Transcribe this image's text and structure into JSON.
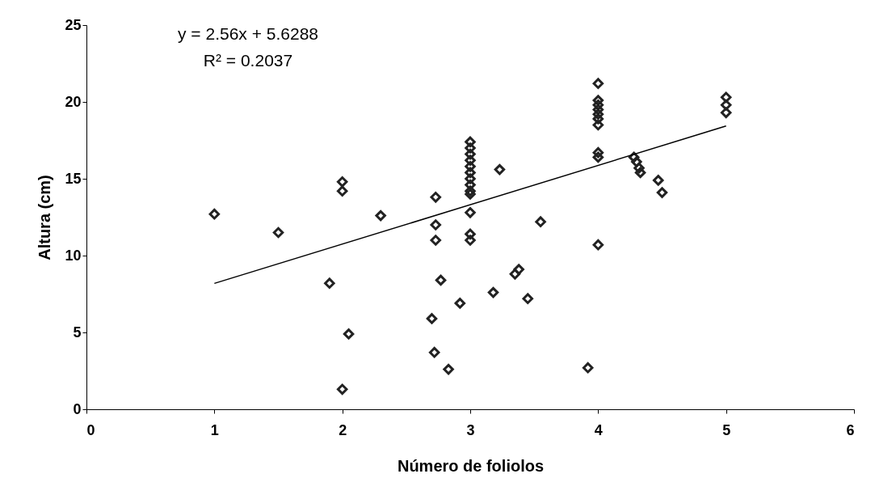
{
  "chart_data": {
    "type": "scatter",
    "xlabel": "Número de foliolos",
    "ylabel": "Altura (cm)",
    "annotations": [
      "y = 2.56x + 5.6288",
      "R² = 0.2037"
    ],
    "xlim": [
      0,
      6
    ],
    "xticks": [
      0,
      1,
      2,
      3,
      4,
      5,
      6
    ],
    "ylim": [
      0,
      25
    ],
    "yticks": [
      0,
      5,
      10,
      15,
      20,
      25
    ],
    "grid": false,
    "marker": "diamond",
    "series": [
      {
        "color": "#222222",
        "x": [
          1,
          1.5,
          1.9,
          2,
          2,
          2.05,
          2,
          2.3,
          2.7,
          2.72,
          2.73,
          2.73,
          2.73,
          2.77,
          2.83,
          2.92,
          3,
          3,
          3,
          3,
          3,
          3,
          3,
          3,
          3,
          3,
          3,
          3,
          3,
          3.18,
          3.23,
          3.35,
          3.38,
          3.45,
          3.55,
          3.92,
          4,
          4,
          4,
          4,
          4,
          4,
          4,
          4,
          4,
          4,
          4.28,
          4.3,
          4.32,
          4.33,
          4.47,
          4.5,
          5,
          5,
          5
        ],
        "values": [
          12.7,
          11.5,
          8.2,
          14.8,
          14.2,
          4.9,
          1.3,
          12.6,
          5.9,
          3.7,
          13.8,
          12.0,
          11.0,
          8.4,
          2.6,
          6.9,
          17.4,
          17.0,
          16.6,
          16.2,
          15.8,
          15.4,
          15.0,
          14.6,
          14.2,
          14.0,
          12.8,
          11.4,
          11.0,
          7.6,
          15.6,
          8.8,
          9.1,
          7.2,
          12.2,
          2.7,
          21.2,
          20.1,
          19.8,
          19.5,
          19.2,
          18.9,
          18.5,
          16.7,
          16.4,
          10.7,
          16.4,
          16.1,
          15.7,
          15.4,
          14.9,
          14.1,
          20.3,
          19.8,
          19.3
        ]
      },
      {
        "type": "line",
        "color": "#000000",
        "marker": "none",
        "line_style": "solid",
        "x": [
          1,
          5
        ],
        "values": [
          8.19,
          18.43
        ]
      }
    ]
  }
}
